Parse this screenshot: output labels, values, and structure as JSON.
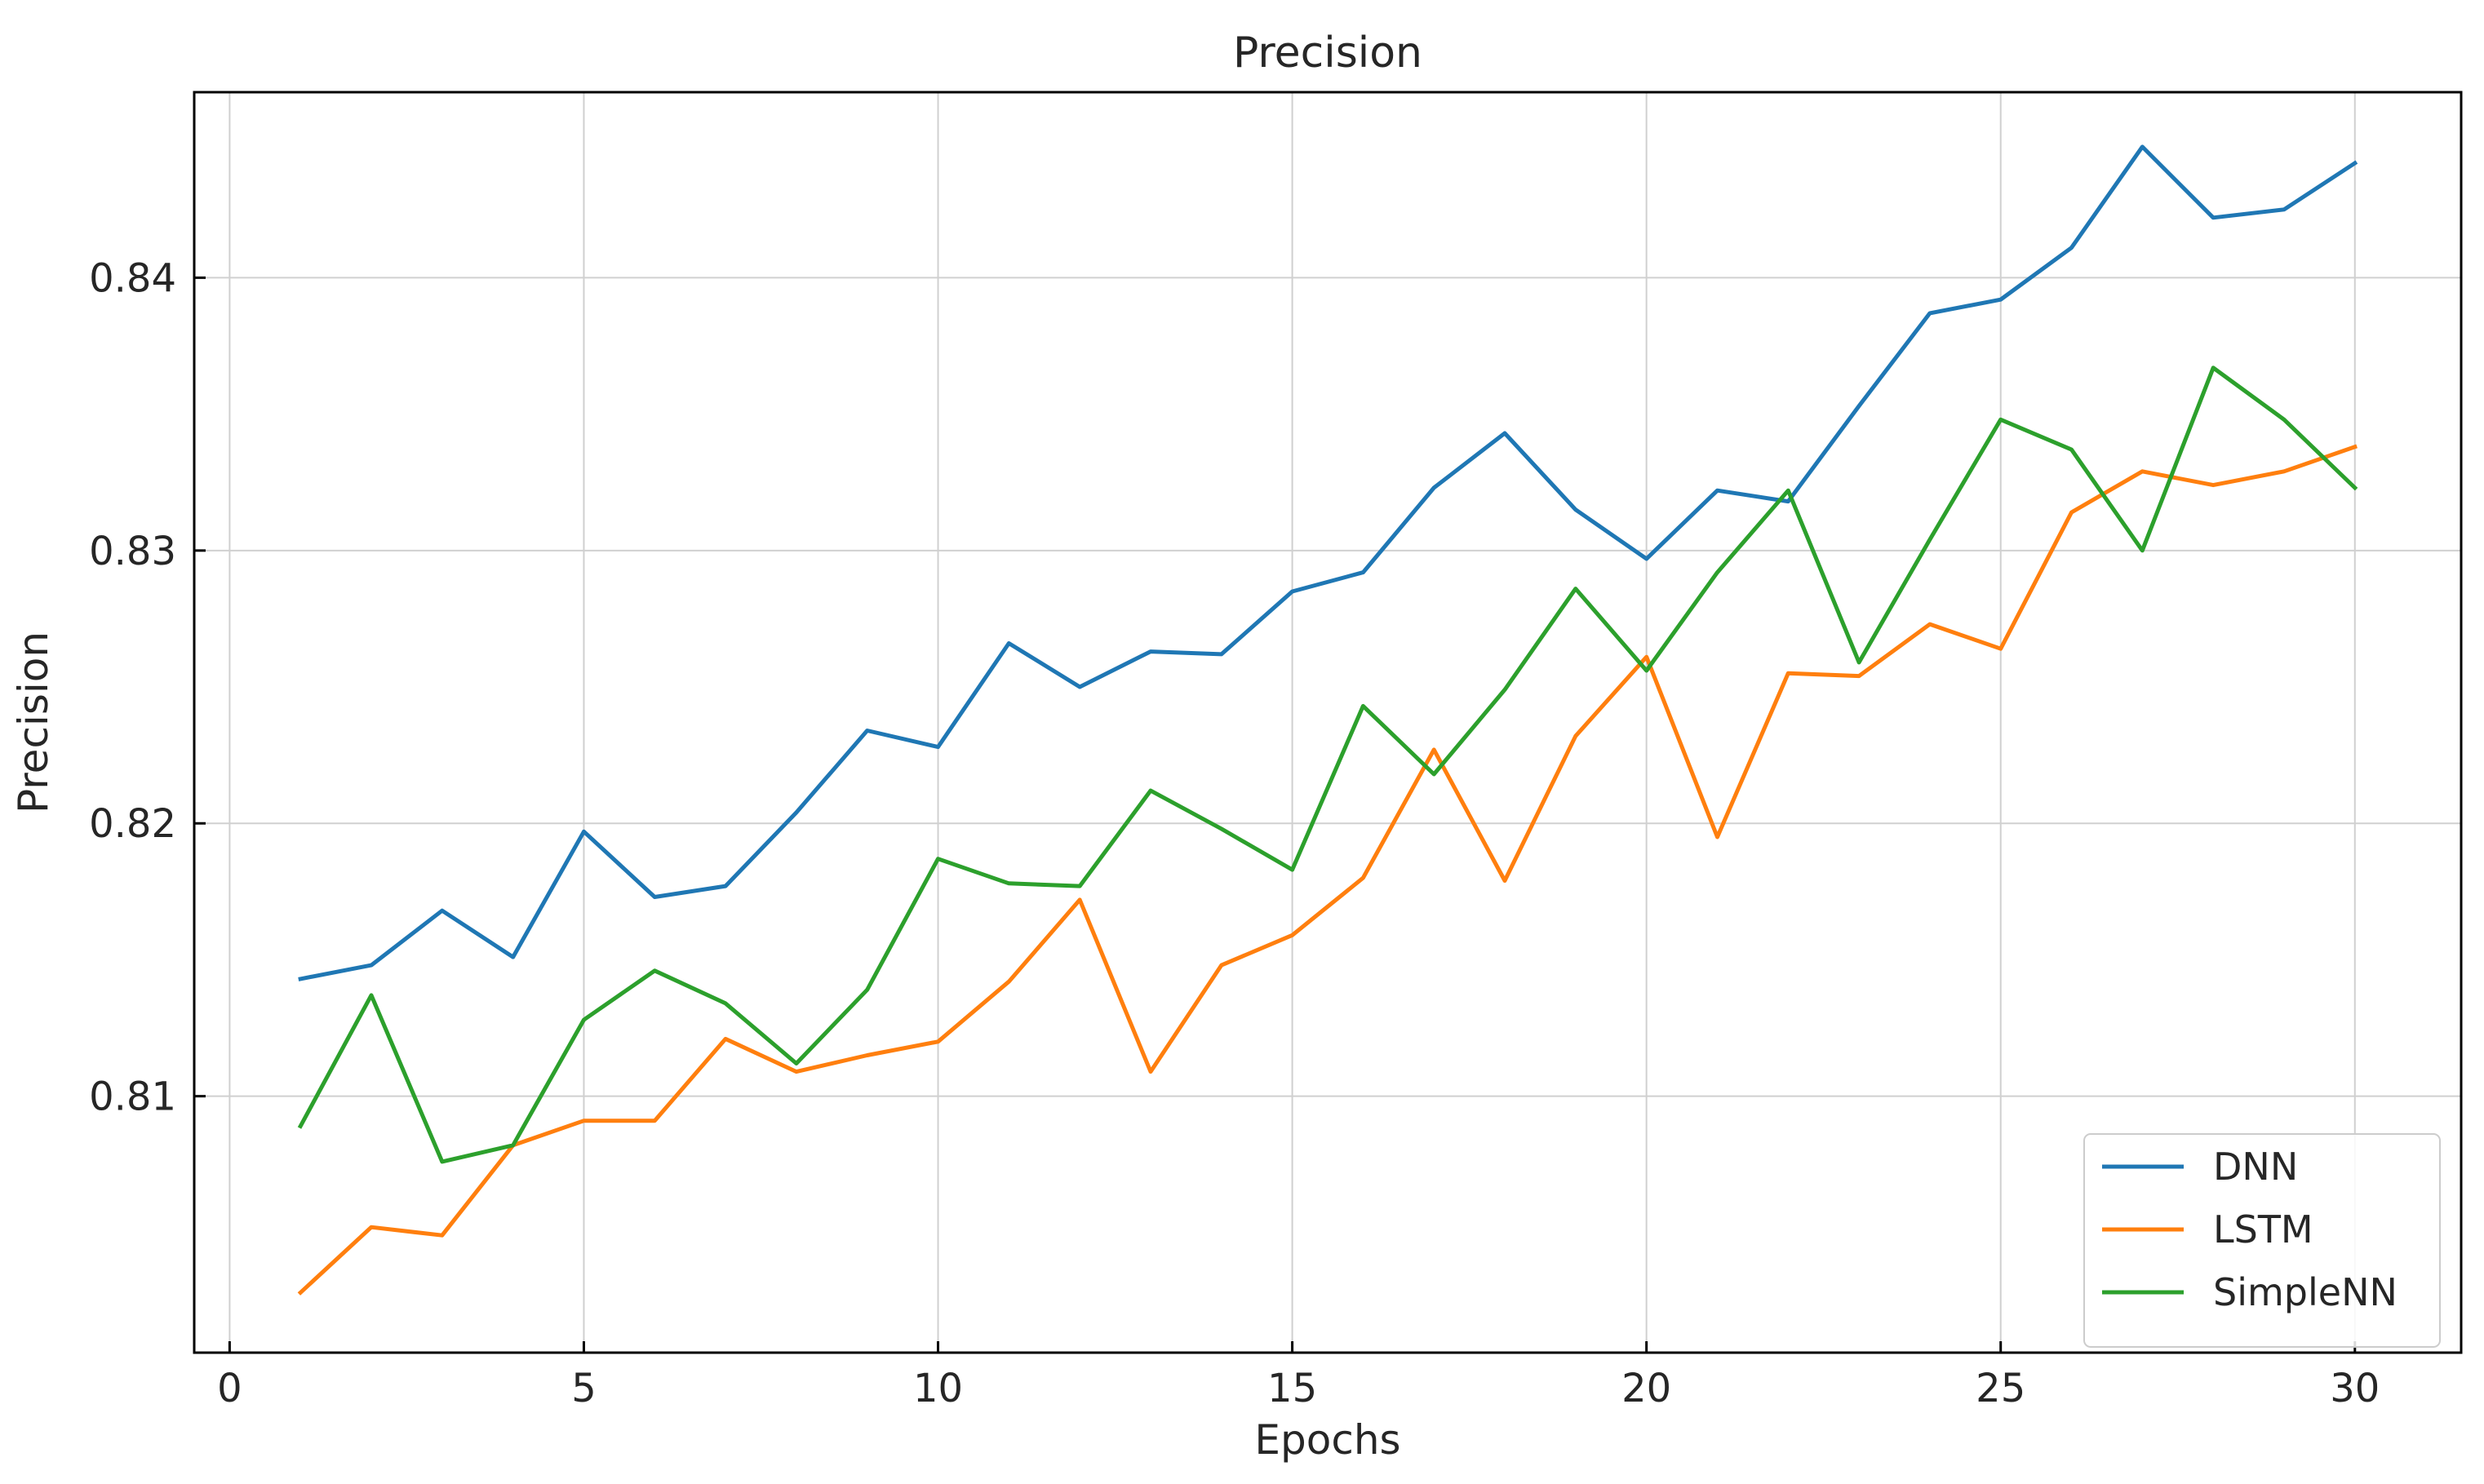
{
  "chart_data": {
    "type": "line",
    "title": "Precision",
    "xlabel": "Epochs",
    "ylabel": "Precision",
    "xlim": [
      -0.5,
      31.5
    ],
    "ylim": [
      0.8006,
      0.8468
    ],
    "xticks": [
      0,
      5,
      10,
      15,
      20,
      25,
      30
    ],
    "xtick_labels": [
      "0",
      "5",
      "10",
      "15",
      "20",
      "25",
      "30"
    ],
    "yticks": [
      0.81,
      0.82,
      0.83,
      0.84
    ],
    "ytick_labels": [
      "0.81",
      "0.82",
      "0.83",
      "0.84"
    ],
    "grid": true,
    "legend_position": "bottom-right",
    "x": [
      1,
      2,
      3,
      4,
      5,
      6,
      7,
      8,
      9,
      10,
      11,
      12,
      13,
      14,
      15,
      16,
      17,
      18,
      19,
      20,
      21,
      22,
      23,
      24,
      25,
      26,
      27,
      28,
      29,
      30
    ],
    "series": [
      {
        "name": "DNN",
        "color": "#1f77b4",
        "values": [
          0.8143,
          0.8148,
          0.8168,
          0.8151,
          0.8197,
          0.8173,
          0.8177,
          0.8204,
          0.8234,
          0.8228,
          0.8266,
          0.825,
          0.8263,
          0.8262,
          0.8285,
          0.8292,
          0.8323,
          0.8343,
          0.8315,
          0.8297,
          0.8322,
          0.8318,
          0.8353,
          0.8387,
          0.8392,
          0.8411,
          0.8448,
          0.8422,
          0.8425,
          0.8442
        ]
      },
      {
        "name": "LSTM",
        "color": "#ff7f0e",
        "values": [
          0.8028,
          0.8052,
          0.8049,
          0.8082,
          0.8091,
          0.8091,
          0.8121,
          0.8109,
          0.8115,
          0.812,
          0.8142,
          0.8172,
          0.8109,
          0.8148,
          0.8159,
          0.818,
          0.8227,
          0.8179,
          0.8232,
          0.8261,
          0.8195,
          0.8255,
          0.8254,
          0.8273,
          0.8264,
          0.8314,
          0.8329,
          0.8324,
          0.8329,
          0.8338
        ]
      },
      {
        "name": "SimpleNN",
        "color": "#2ca02c",
        "values": [
          0.8089,
          0.8137,
          0.8076,
          0.8082,
          0.8128,
          0.8146,
          0.8134,
          0.8112,
          0.8139,
          0.8187,
          0.8178,
          0.8177,
          0.8212,
          0.8198,
          0.8183,
          0.8243,
          0.8218,
          0.8249,
          0.8286,
          0.8256,
          0.8292,
          0.8322,
          0.8259,
          0.8304,
          0.8348,
          0.8337,
          0.83,
          0.8367,
          0.8348,
          0.8323
        ]
      }
    ]
  }
}
